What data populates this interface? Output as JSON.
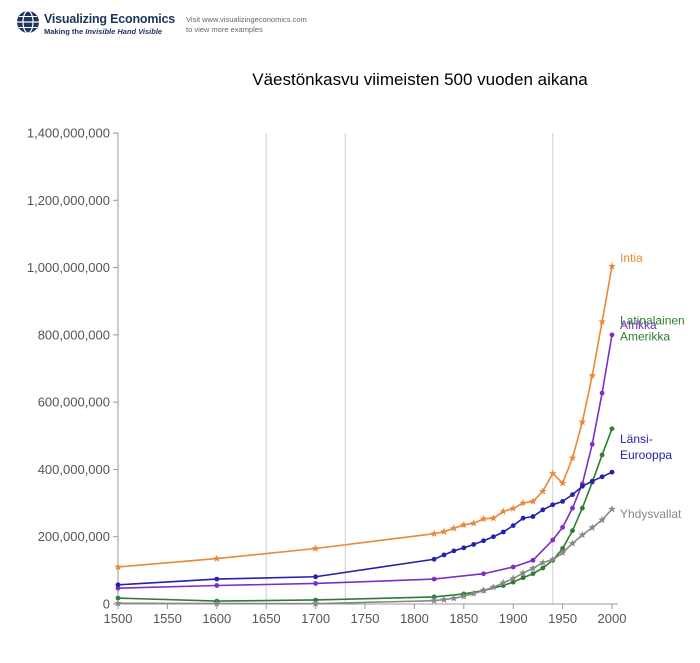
{
  "header": {
    "logo_title": "Visualizing Economics",
    "logo_tag_prefix": "Making the ",
    "logo_tag_italic": "Invisible Hand Visible",
    "visit_line1": "Visit www.visualizingeconomics.com",
    "visit_line2": "to view more examples",
    "logo_icon": "globe-icon"
  },
  "chart_data": {
    "type": "line",
    "title": "Väestönkasvu viimeisten 500 vuoden aikana",
    "xlabel": "",
    "ylabel": "",
    "xlim": [
      1500,
      2000
    ],
    "ylim": [
      0,
      1400000000
    ],
    "x_ticks": [
      1500,
      1550,
      1600,
      1650,
      1700,
      1750,
      1800,
      1850,
      1900,
      1950,
      2000
    ],
    "y_ticks": [
      {
        "value": 0,
        "label": "0"
      },
      {
        "value": 200000000,
        "label": "200,000,000"
      },
      {
        "value": 400000000,
        "label": "400,000,000"
      },
      {
        "value": 600000000,
        "label": "600,000,000"
      },
      {
        "value": 800000000,
        "label": "800,000,000"
      },
      {
        "value": 1000000000,
        "label": "1,000,000,000"
      },
      {
        "value": 1200000000,
        "label": "1,200,000,000"
      },
      {
        "value": 1400000000,
        "label": "1,400,000,000"
      }
    ],
    "vertical_reference_lines": [
      1650,
      1730,
      1940
    ],
    "grid": false,
    "series": [
      {
        "name": "Intia",
        "color": "#e8893a",
        "marker": "star",
        "label_lines": [
          "Intia"
        ],
        "points": [
          [
            1500,
            110000000
          ],
          [
            1600,
            135000000
          ],
          [
            1700,
            165000000
          ],
          [
            1820,
            209000000
          ],
          [
            1830,
            215000000
          ],
          [
            1840,
            225000000
          ],
          [
            1850,
            235000000
          ],
          [
            1860,
            240000000
          ],
          [
            1870,
            253000000
          ],
          [
            1880,
            255000000
          ],
          [
            1890,
            275000000
          ],
          [
            1900,
            284000000
          ],
          [
            1910,
            300000000
          ],
          [
            1920,
            305000000
          ],
          [
            1930,
            335000000
          ],
          [
            1940,
            388000000
          ],
          [
            1950,
            359000000
          ],
          [
            1960,
            434000000
          ],
          [
            1970,
            541000000
          ],
          [
            1980,
            679000000
          ],
          [
            1990,
            839000000
          ],
          [
            2000,
            1004000000
          ]
        ]
      },
      {
        "name": "Afrikka",
        "color": "#7a2fc8",
        "marker": "dot",
        "label_lines": [
          "Afrikka"
        ],
        "points": [
          [
            1500,
            47000000
          ],
          [
            1600,
            55000000
          ],
          [
            1700,
            61000000
          ],
          [
            1820,
            74000000
          ],
          [
            1870,
            90000000
          ],
          [
            1900,
            110000000
          ],
          [
            1920,
            130000000
          ],
          [
            1940,
            190000000
          ],
          [
            1950,
            228000000
          ],
          [
            1960,
            285000000
          ],
          [
            1970,
            357000000
          ],
          [
            1980,
            475000000
          ],
          [
            1990,
            627000000
          ],
          [
            2000,
            800000000
          ]
        ]
      },
      {
        "name": "Latinalainen Amerikka",
        "color": "#2e7d32",
        "marker": "dot",
        "label_lines": [
          "Latinalainen",
          "Amerikka"
        ],
        "points": [
          [
            1500,
            17500000
          ],
          [
            1600,
            8600000
          ],
          [
            1700,
            12000000
          ],
          [
            1820,
            21000000
          ],
          [
            1850,
            30000000
          ],
          [
            1870,
            40000000
          ],
          [
            1890,
            55000000
          ],
          [
            1900,
            65000000
          ],
          [
            1910,
            78000000
          ],
          [
            1920,
            90000000
          ],
          [
            1930,
            107000000
          ],
          [
            1940,
            130000000
          ],
          [
            1950,
            165000000
          ],
          [
            1960,
            218000000
          ],
          [
            1970,
            285000000
          ],
          [
            1980,
            362000000
          ],
          [
            1990,
            443000000
          ],
          [
            2000,
            521000000
          ]
        ]
      },
      {
        "name": "Länsi-Eurooppa",
        "color": "#2222aa",
        "marker": "dot",
        "label_lines": [
          "Länsi-",
          "Eurooppa"
        ],
        "points": [
          [
            1500,
            57000000
          ],
          [
            1600,
            74000000
          ],
          [
            1700,
            81000000
          ],
          [
            1820,
            133000000
          ],
          [
            1830,
            146000000
          ],
          [
            1840,
            158000000
          ],
          [
            1850,
            167000000
          ],
          [
            1860,
            177000000
          ],
          [
            1870,
            188000000
          ],
          [
            1880,
            200000000
          ],
          [
            1890,
            214000000
          ],
          [
            1900,
            233000000
          ],
          [
            1910,
            255000000
          ],
          [
            1920,
            260000000
          ],
          [
            1930,
            280000000
          ],
          [
            1940,
            295000000
          ],
          [
            1950,
            305000000
          ],
          [
            1960,
            325000000
          ],
          [
            1970,
            350000000
          ],
          [
            1980,
            365000000
          ],
          [
            1990,
            378000000
          ],
          [
            2000,
            392000000
          ]
        ]
      },
      {
        "name": "Yhdysvallat",
        "color": "#888888",
        "marker": "star",
        "label_lines": [
          "Yhdysvallat"
        ],
        "points": [
          [
            1500,
            2000000
          ],
          [
            1600,
            1500000
          ],
          [
            1700,
            1000000
          ],
          [
            1820,
            10000000
          ],
          [
            1830,
            13000000
          ],
          [
            1840,
            17000000
          ],
          [
            1850,
            23000000
          ],
          [
            1860,
            31000000
          ],
          [
            1870,
            40000000
          ],
          [
            1880,
            50000000
          ],
          [
            1890,
            63000000
          ],
          [
            1900,
            76000000
          ],
          [
            1910,
            92000000
          ],
          [
            1920,
            106000000
          ],
          [
            1930,
            123000000
          ],
          [
            1940,
            132000000
          ],
          [
            1950,
            152000000
          ],
          [
            1960,
            180000000
          ],
          [
            1970,
            205000000
          ],
          [
            1980,
            227000000
          ],
          [
            1990,
            250000000
          ],
          [
            2000,
            282000000
          ]
        ]
      }
    ]
  }
}
